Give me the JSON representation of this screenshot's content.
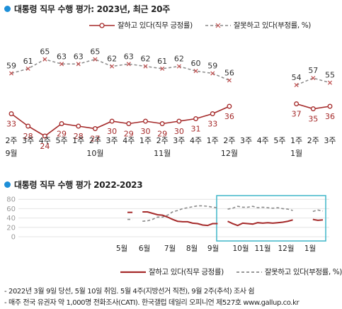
{
  "chart1": {
    "title": "대통령 직무 수행 평가: 2023년, 최근 20주",
    "legend": {
      "approve": "잘하고 있다(직무 긍정률)",
      "disapprove": "잘못하고 있다(부정률, %)"
    },
    "colors": {
      "approve": "#a52a2a",
      "disapprove": "#8a8a8a"
    }
  },
  "chart2": {
    "title": "대통령 직무 수행 평가 2022-2023",
    "legend": {
      "approve": "잘하고 있다(직무 긍정률)",
      "disapprove": "잘못하고 있다(부정률, %)"
    }
  },
  "footnotes": [
    "- 2022년 3월 9일 당선, 5월 10일 취임. 5월 4주(지방선거 직전), 9월 2주(추석) 조사 쉼",
    "- 매주 전국 유권자 약 1,000명 전화조사(CATI). 한국갤럽 데일리 오피니언 제527호 www.gallup.co.kr"
  ],
  "chart_data": [
    {
      "type": "line",
      "title": "대통령 직무 수행 평가: 2023년, 최근 20주",
      "categories": [
        "2주",
        "3주",
        "4주",
        "5주",
        "1주",
        "2주",
        "3주",
        "4주",
        "1주",
        "2주",
        "3주",
        "4주",
        "1주",
        "2주",
        "3주",
        "4주",
        "5주",
        "1주",
        "2주",
        "3주"
      ],
      "month_labels": [
        {
          "index": 0,
          "label": "9월"
        },
        {
          "index": 5,
          "label": "10월"
        },
        {
          "index": 9,
          "label": "11월"
        },
        {
          "index": 13,
          "label": "12월"
        },
        {
          "index": 17,
          "label": "1월"
        }
      ],
      "series": [
        {
          "name": "잘하고 있다(직무 긍정률)",
          "values": [
            33,
            28,
            24,
            29,
            28,
            27,
            30,
            29,
            30,
            29,
            30,
            31,
            33,
            36,
            null,
            null,
            null,
            37,
            35,
            36
          ]
        },
        {
          "name": "잘못하고 있다(부정률, %)",
          "values": [
            59,
            61,
            65,
            63,
            63,
            65,
            62,
            63,
            62,
            61,
            62,
            60,
            59,
            56,
            null,
            null,
            null,
            54,
            57,
            55
          ]
        }
      ]
    },
    {
      "type": "line",
      "title": "대통령 직무 수행 평가 2022-2023",
      "yticks": [
        0,
        20,
        40,
        60,
        80
      ],
      "ylim": [
        0,
        80
      ],
      "x_labels": [
        "5월",
        "6월",
        "7월",
        "8월",
        "9월",
        "10월",
        "11월",
        "12월",
        "1월"
      ],
      "series": [
        {
          "name": "잘하고 있다(직무 긍정률)",
          "values": [
            52,
            52,
            null,
            53,
            53,
            50,
            47,
            46,
            42,
            37,
            33,
            32,
            32,
            29,
            28,
            25,
            24,
            28,
            28,
            null,
            33,
            28,
            24,
            29,
            28,
            27,
            30,
            29,
            30,
            29,
            30,
            31,
            33,
            36,
            null,
            null,
            null,
            37,
            35,
            36
          ]
        },
        {
          "name": "잘못하고 있다(부정률, %)",
          "values": [
            37,
            37,
            null,
            33,
            34,
            37,
            42,
            42,
            46,
            53,
            56,
            60,
            62,
            64,
            66,
            66,
            65,
            63,
            62,
            null,
            59,
            61,
            65,
            63,
            63,
            65,
            62,
            63,
            62,
            61,
            62,
            60,
            59,
            56,
            null,
            null,
            null,
            54,
            57,
            55
          ]
        }
      ]
    }
  ]
}
